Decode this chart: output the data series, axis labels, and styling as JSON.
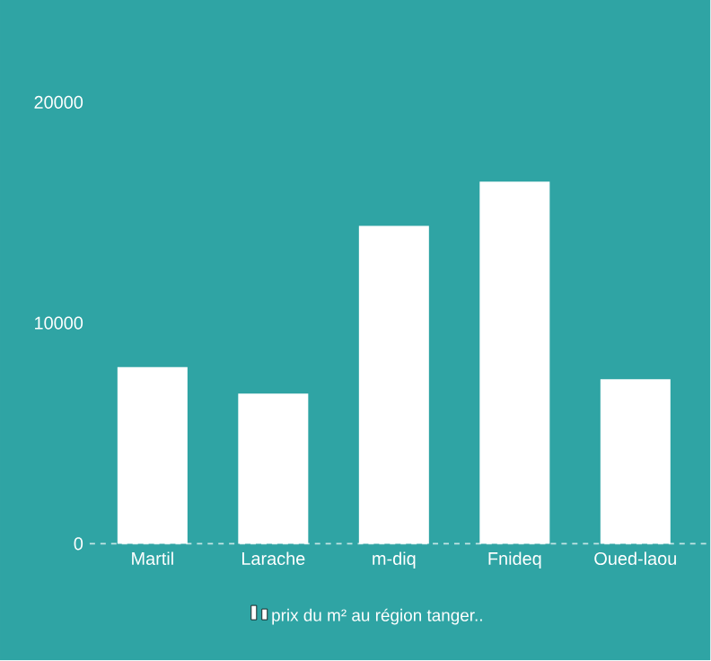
{
  "chart_data": {
    "type": "bar",
    "categories": [
      "Martil",
      "Larache",
      "m-diq",
      "Fnideq",
      "Oued-laou"
    ],
    "series": [
      {
        "name": "prix du m² au région tanger..",
        "color": "#ffffff",
        "values": [
          8000,
          6800,
          14400,
          16400,
          7450
        ]
      }
    ],
    "ylim": [
      0,
      20000
    ],
    "yticks": [
      0,
      10000,
      20000
    ],
    "legend": "bottom"
  }
}
